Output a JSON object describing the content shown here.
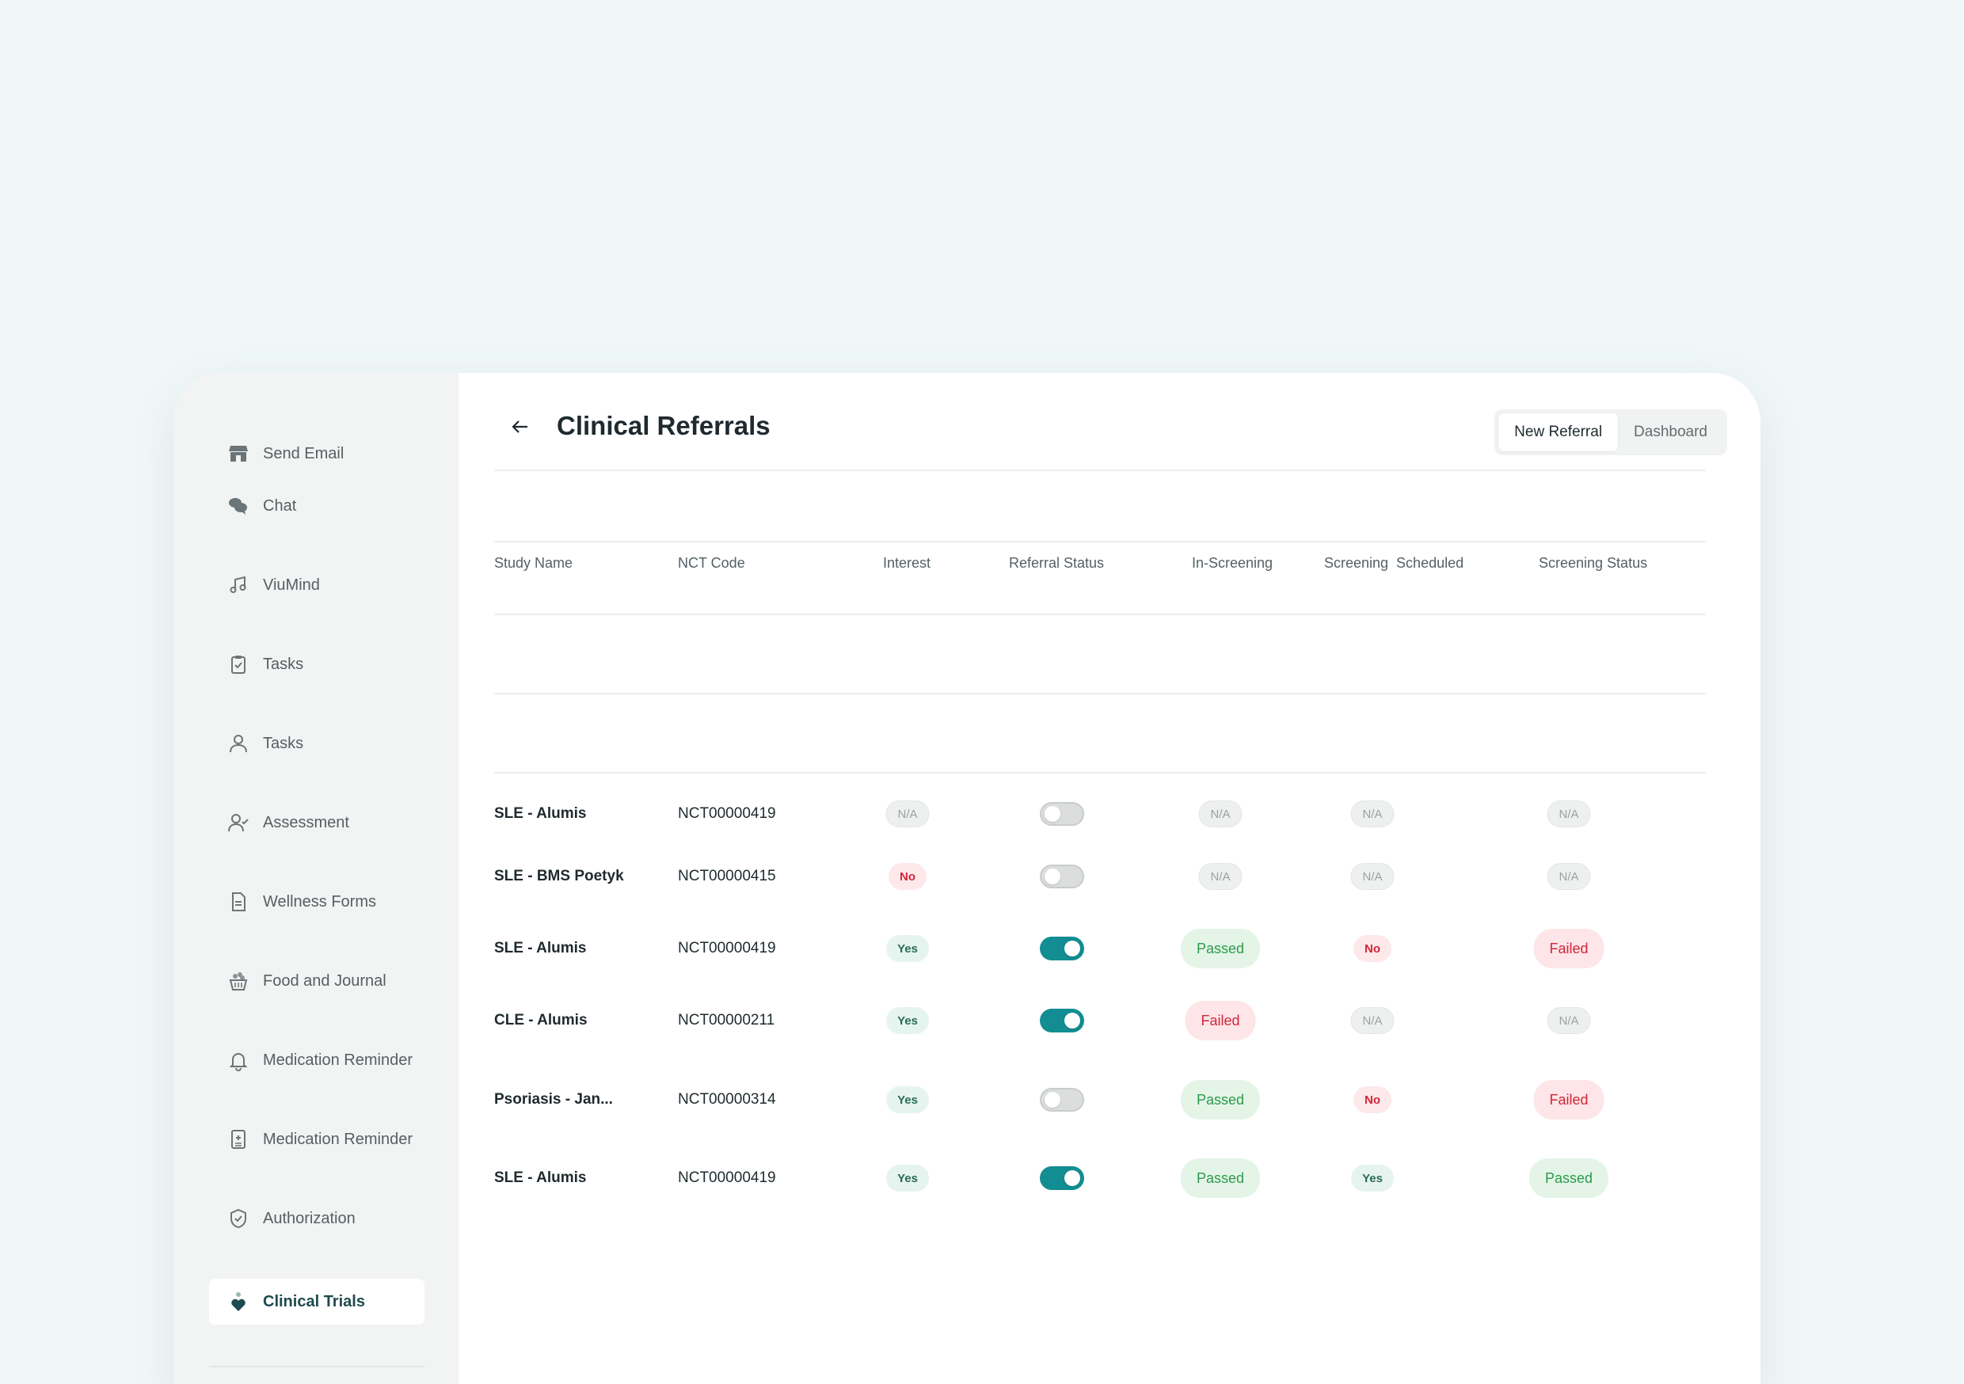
{
  "sidebar": {
    "items": [
      {
        "label": "Send Email",
        "icon": "store-icon"
      },
      {
        "label": "Chat",
        "icon": "chat-bubbles-icon"
      },
      {
        "label": "ViuMind",
        "icon": "music-note-icon"
      },
      {
        "label": "Tasks",
        "icon": "clipboard-check-icon"
      },
      {
        "label": "Tasks",
        "icon": "user-icon"
      },
      {
        "label": "Assessment",
        "icon": "user-check-icon"
      },
      {
        "label": "Wellness Forms",
        "icon": "document-icon"
      },
      {
        "label": "Food and Journal",
        "icon": "food-basket-icon"
      },
      {
        "label": "Medication Reminder",
        "icon": "bell-icon"
      },
      {
        "label": "Medication Reminder",
        "icon": "medical-file-icon"
      },
      {
        "label": "Authorization",
        "icon": "shield-check-icon"
      },
      {
        "label": "Clinical Trials",
        "icon": "heart-person-icon",
        "active": true
      }
    ]
  },
  "header": {
    "title": "Clinical Referrals",
    "tabs": [
      {
        "label": "New Referral",
        "active": true
      },
      {
        "label": "Dashboard",
        "active": false
      }
    ]
  },
  "table": {
    "columns": [
      "Study Name",
      "NCT Code",
      "Interest",
      "Referral Status",
      "In-Screening",
      "Screening  Scheduled",
      "Screening Status"
    ],
    "rows": [
      {
        "study": "SLE - Alumis",
        "nct": "NCT00000419",
        "interest": "N/A",
        "referral_on": false,
        "in_screening": "N/A",
        "scheduled": "N/A",
        "status": "N/A"
      },
      {
        "study": "SLE - BMS Poetyk",
        "nct": "NCT00000415",
        "interest": "No",
        "referral_on": false,
        "in_screening": "N/A",
        "scheduled": "N/A",
        "status": "N/A"
      },
      {
        "study": "SLE - Alumis",
        "nct": "NCT00000419",
        "interest": "Yes",
        "referral_on": true,
        "in_screening": "Passed",
        "scheduled": "No",
        "status": "Failed"
      },
      {
        "study": "CLE - Alumis",
        "nct": "NCT00000211",
        "interest": "Yes",
        "referral_on": true,
        "in_screening": "Failed",
        "scheduled": "N/A",
        "status": "N/A"
      },
      {
        "study": "Psoriasis - Jan...",
        "nct": "NCT00000314",
        "interest": "Yes",
        "referral_on": false,
        "in_screening": "Passed",
        "scheduled": "No",
        "status": "Failed"
      },
      {
        "study": "SLE - Alumis",
        "nct": "NCT00000419",
        "interest": "Yes",
        "referral_on": true,
        "in_screening": "Passed",
        "scheduled": "Yes",
        "status": "Passed"
      }
    ]
  },
  "colors": {
    "page_bg": "#f0f7f8",
    "toggle_on": "#128d92",
    "passed_text": "#2c9a4b",
    "failed_text": "#d12638"
  }
}
